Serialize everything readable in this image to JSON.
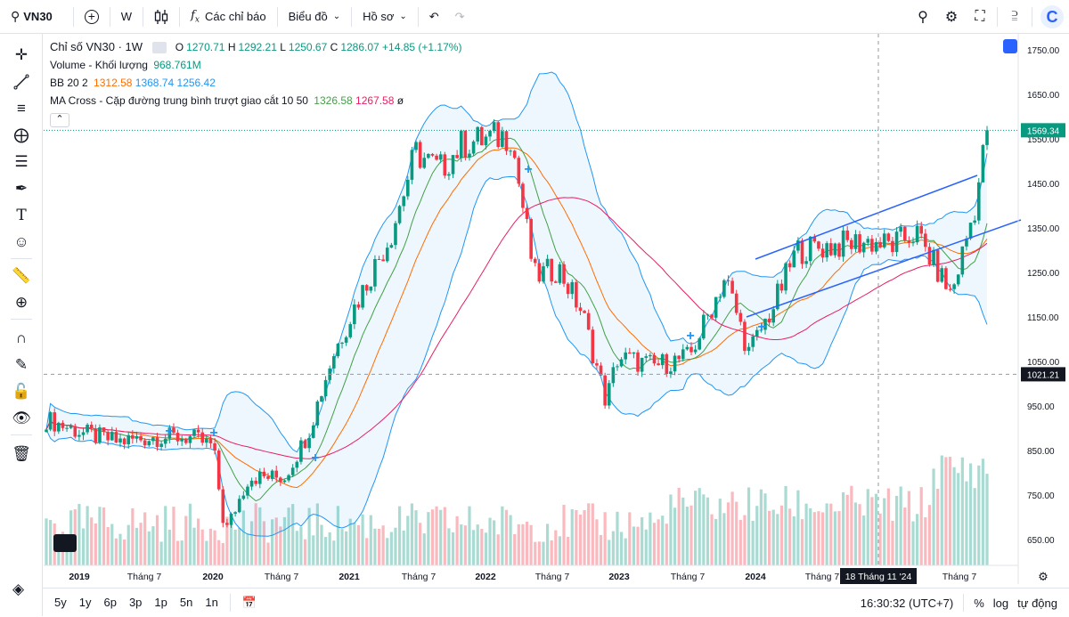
{
  "topbar": {
    "symbol": "VN30",
    "interval": "W",
    "indicators_label": "Các chỉ báo",
    "chart_label": "Biểu đồ",
    "profile_label": "Hồ sơ"
  },
  "legend": {
    "title": "Chỉ số VN30 · 1W",
    "ohlc": {
      "o_label": "O",
      "o": "1270.71",
      "h_label": "H",
      "h": "1292.21",
      "l_label": "L",
      "l": "1250.67",
      "c_label": "C",
      "c": "1286.07",
      "change": "+14.85 (+1.17%)"
    },
    "volume_label": "Volume - Khối lượng",
    "volume_value": "968.761M",
    "bb_label": "BB 20 2",
    "bb_values": [
      "1312.58",
      "1368.74",
      "1256.42"
    ],
    "ma_label": "MA Cross - Cặp đường trung bình trượt giao cắt 10 50",
    "ma_values": [
      "1326.58",
      "1267.58",
      "ø"
    ]
  },
  "colors": {
    "up": "#089981",
    "down": "#f23645",
    "bb_band": "#2196f3",
    "bb_basis": "#ff6d00",
    "ma_fast": "#43a047",
    "ma_slow": "#e91e63",
    "trendline": "#2962ff",
    "accent": "#2962ff"
  },
  "price_axis": {
    "ticks": [
      "1750.00",
      "1650.00",
      "1550.00",
      "1450.00",
      "1350.00",
      "1250.00",
      "1150.00",
      "1050.00",
      "950.00",
      "850.00",
      "750.00",
      "650.00"
    ],
    "last_price": "1569.34",
    "crosshair_price": "1021.21"
  },
  "time_axis": {
    "labels": [
      "2019",
      "Tháng 7",
      "2020",
      "Tháng 7",
      "2021",
      "Tháng 7",
      "2022",
      "Tháng 7",
      "2023",
      "Tháng 7",
      "2024",
      "Tháng 7",
      "Tháng 7"
    ],
    "crosshair_label": "18 Tháng 11 '24"
  },
  "bottombar": {
    "ranges": [
      "5y",
      "1y",
      "6p",
      "3p",
      "1p",
      "5n",
      "1n"
    ],
    "clock": "16:30:32 (UTC+7)",
    "percent": "%",
    "log": "log",
    "auto": "tự động"
  },
  "chart_data": {
    "type": "candlestick",
    "title": "Chỉ số VN30 · 1W",
    "ylim": [
      600,
      1780
    ],
    "log_scale": false,
    "grid": false,
    "close_series": [
      {
        "x": "2018-12",
        "close": 920
      },
      {
        "x": "2019-03",
        "close": 890
      },
      {
        "x": "2019-06",
        "close": 870
      },
      {
        "x": "2019-09",
        "close": 880
      },
      {
        "x": "2019-12",
        "close": 880
      },
      {
        "x": "2020-02",
        "close": 860
      },
      {
        "x": "2020-03",
        "close": 665
      },
      {
        "x": "2020-05",
        "close": 790
      },
      {
        "x": "2020-08",
        "close": 790
      },
      {
        "x": "2020-10",
        "close": 890
      },
      {
        "x": "2020-12",
        "close": 1060
      },
      {
        "x": "2021-02",
        "close": 1180
      },
      {
        "x": "2021-05",
        "close": 1340
      },
      {
        "x": "2021-07",
        "close": 1520
      },
      {
        "x": "2021-09",
        "close": 1480
      },
      {
        "x": "2021-11",
        "close": 1540
      },
      {
        "x": "2022-01",
        "close": 1550
      },
      {
        "x": "2022-03",
        "close": 1560
      },
      {
        "x": "2022-05",
        "close": 1240
      },
      {
        "x": "2022-07",
        "close": 1260
      },
      {
        "x": "2022-09",
        "close": 1160
      },
      {
        "x": "2022-11",
        "close": 960
      },
      {
        "x": "2022-12",
        "close": 1060
      },
      {
        "x": "2023-03",
        "close": 1040
      },
      {
        "x": "2023-06",
        "close": 1060
      },
      {
        "x": "2023-09",
        "close": 1240
      },
      {
        "x": "2023-11",
        "close": 1070
      },
      {
        "x": "2024-01",
        "close": 1170
      },
      {
        "x": "2024-03",
        "close": 1300
      },
      {
        "x": "2024-06",
        "close": 1310
      },
      {
        "x": "2024-09",
        "close": 1320
      },
      {
        "x": "2024-11",
        "close": 1310
      },
      {
        "x": "2025-01",
        "close": 1340
      },
      {
        "x": "2025-04",
        "close": 1200
      },
      {
        "x": "2025-06",
        "close": 1400
      },
      {
        "x": "2025-07",
        "close": 1569.34
      }
    ],
    "volume_label": "Volume - Khối lượng"
  }
}
